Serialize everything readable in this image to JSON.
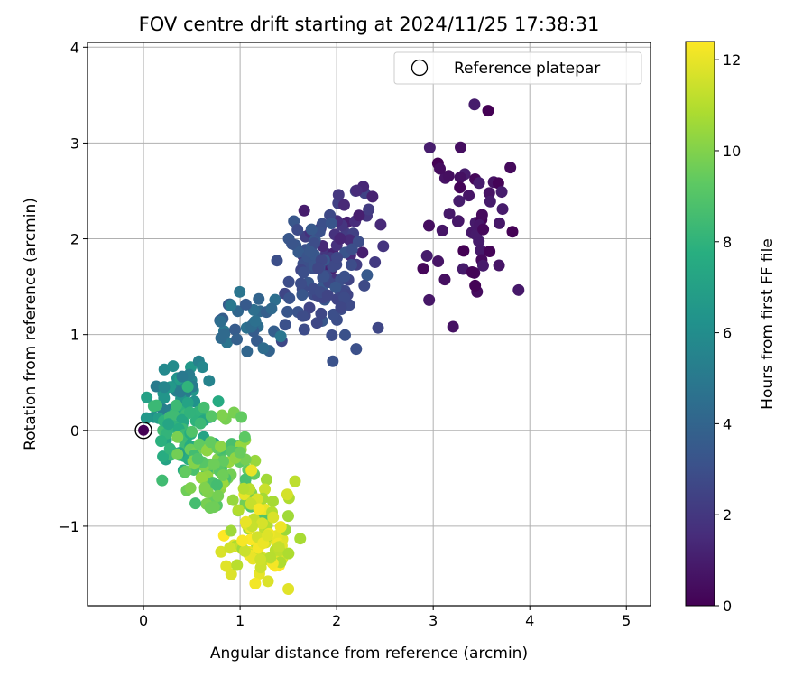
{
  "chart_data": {
    "type": "scatter",
    "title": "FOV centre drift starting at 2024/11/25 17:38:31",
    "xlabel": "Angular distance from reference (arcmin)",
    "ylabel": "Rotation from reference (arcmin)",
    "xlim": [
      -0.58,
      5.25
    ],
    "ylim": [
      -1.83,
      4.05
    ],
    "xticks": [
      0,
      1,
      2,
      3,
      4,
      5
    ],
    "yticks": [
      -1,
      0,
      1,
      2,
      3,
      4
    ],
    "grid": true,
    "legend": {
      "position": "top-right",
      "entries": [
        "Reference platepar"
      ]
    },
    "reference_point": {
      "x": 0,
      "y": 0
    },
    "colorbar": {
      "label": "Hours from first FF file",
      "range": [
        0,
        12.4
      ],
      "ticks": [
        0,
        2,
        4,
        6,
        8,
        10,
        12
      ],
      "colormap": "viridis"
    },
    "clusters": [
      {
        "hours": [
          0,
          1
        ],
        "x": [
          2.9,
          3.85
        ],
        "y": [
          1.25,
          3.2
        ],
        "n": 55
      },
      {
        "hours": [
          1,
          2.5
        ],
        "x": [
          1.7,
          2.5
        ],
        "y": [
          1.5,
          2.6
        ],
        "n": 40
      },
      {
        "hours": [
          2.5,
          3.5
        ],
        "x": [
          1.4,
          2.3
        ],
        "y": [
          0.9,
          2.2
        ],
        "n": 90
      },
      {
        "hours": [
          3.5,
          5
        ],
        "x": [
          0.7,
          1.5
        ],
        "y": [
          0.75,
          1.4
        ],
        "n": 35
      },
      {
        "hours": [
          5,
          7
        ],
        "x": [
          0.0,
          0.7
        ],
        "y": [
          0.0,
          0.7
        ],
        "n": 45
      },
      {
        "hours": [
          7,
          8.5
        ],
        "x": [
          0.05,
          0.7
        ],
        "y": [
          -0.5,
          0.4
        ],
        "n": 60
      },
      {
        "hours": [
          8.5,
          10.5
        ],
        "x": [
          0.4,
          1.2
        ],
        "y": [
          -0.95,
          0.15
        ],
        "n": 90
      },
      {
        "hours": [
          10.5,
          12.4
        ],
        "x": [
          0.9,
          1.6
        ],
        "y": [
          -1.6,
          -0.55
        ],
        "n": 90
      }
    ]
  }
}
